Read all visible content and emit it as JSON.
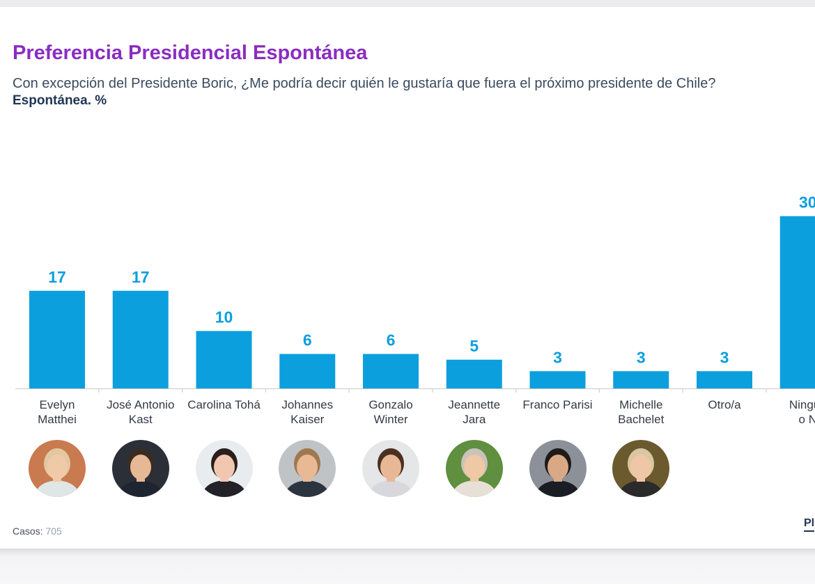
{
  "header": {
    "title": "Preferencia Presidencial Espontánea",
    "question": "Con excepción del Presidente Boric, ¿Me podría decir quién le gustaría que fuera el próximo presidente de Chile?",
    "subtitle": "Espontánea. %"
  },
  "chart_data": {
    "type": "bar",
    "title": "Preferencia Presidencial Espontánea",
    "xlabel": "",
    "ylabel": "%",
    "ylim": [
      0,
      30
    ],
    "grid": false,
    "categories": [
      "Evelyn\nMatthei",
      "José Antonio\nKast",
      "Carolina Tohá",
      "Johannes\nKaiser",
      "Gonzalo\nWinter",
      "Jeannette\nJara",
      "Franco Parisi",
      "Michelle\nBachelet",
      "Otro/a",
      "Ningun\no N"
    ],
    "values": [
      17,
      17,
      10,
      6,
      6,
      5,
      3,
      3,
      3,
      30
    ],
    "data_labels": [
      "17",
      "17",
      "10",
      "6",
      "6",
      "5",
      "3",
      "3",
      "3",
      "30"
    ]
  },
  "colors": {
    "bar": "#0c9fde",
    "title": "#8a2dc0",
    "axis": "#c8c8c8"
  },
  "photos": [
    {
      "name": "Evelyn Matthei",
      "icon": "portrait-icon"
    },
    {
      "name": "José Antonio Kast",
      "icon": "portrait-icon"
    },
    {
      "name": "Carolina Tohá",
      "icon": "portrait-icon"
    },
    {
      "name": "Johannes Kaiser",
      "icon": "portrait-icon"
    },
    {
      "name": "Gonzalo Winter",
      "icon": "portrait-icon"
    },
    {
      "name": "Jeannette Jara",
      "icon": "portrait-icon"
    },
    {
      "name": "Franco Parisi",
      "icon": "portrait-icon"
    },
    {
      "name": "Michelle Bachelet",
      "icon": "portrait-icon"
    }
  ],
  "footer": {
    "cases_label": "Casos",
    "cases_sep": ": ",
    "cases_value": "705",
    "logo_text": "Pl"
  }
}
